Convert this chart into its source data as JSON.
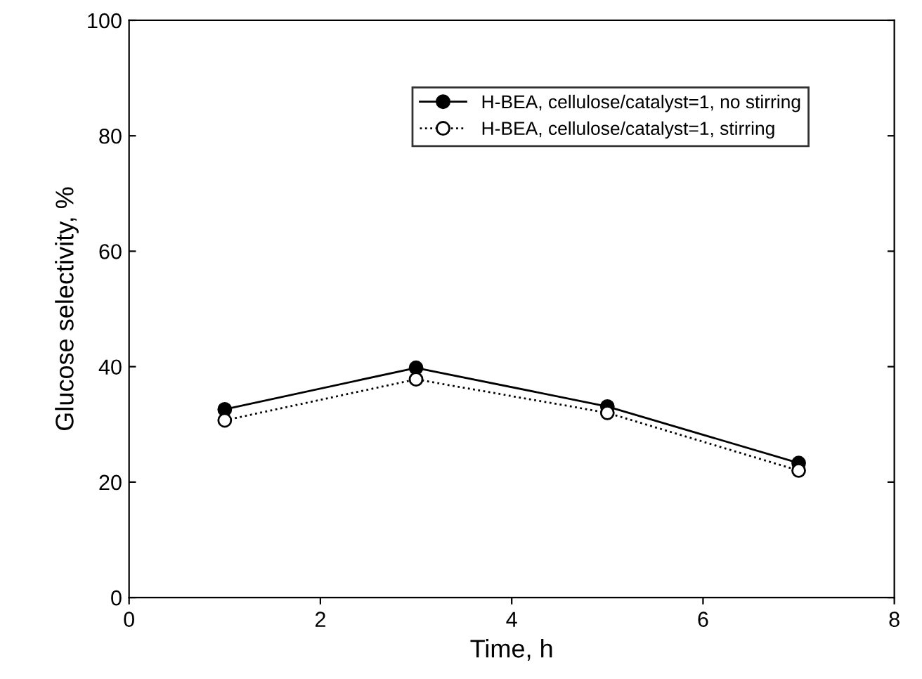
{
  "chart_data": {
    "type": "line",
    "xlabel": "Time, h",
    "ylabel": "Glucose selectivity, %",
    "x": [
      1,
      3,
      5,
      7
    ],
    "series": [
      {
        "name": "H-BEA, cellulose/catalyst=1, no stirring",
        "color": "#000000",
        "values": [
          32.6,
          39.8,
          33.1,
          23.3
        ],
        "marker": "circle",
        "line_style": "solid"
      },
      {
        "name": "H-BEA, cellulose/catalyst=1, stirring",
        "color": "#000000",
        "values": [
          30.7,
          37.8,
          32.0,
          22.0
        ],
        "marker": "circle",
        "line_style": "dotted"
      }
    ],
    "xlim": [
      0,
      8
    ],
    "ylim": [
      0,
      100
    ],
    "xticks": [
      0,
      2,
      4,
      6,
      8
    ],
    "yticks": [
      0,
      20,
      40,
      60,
      80,
      100
    ],
    "grid": false,
    "legend": "top right"
  }
}
